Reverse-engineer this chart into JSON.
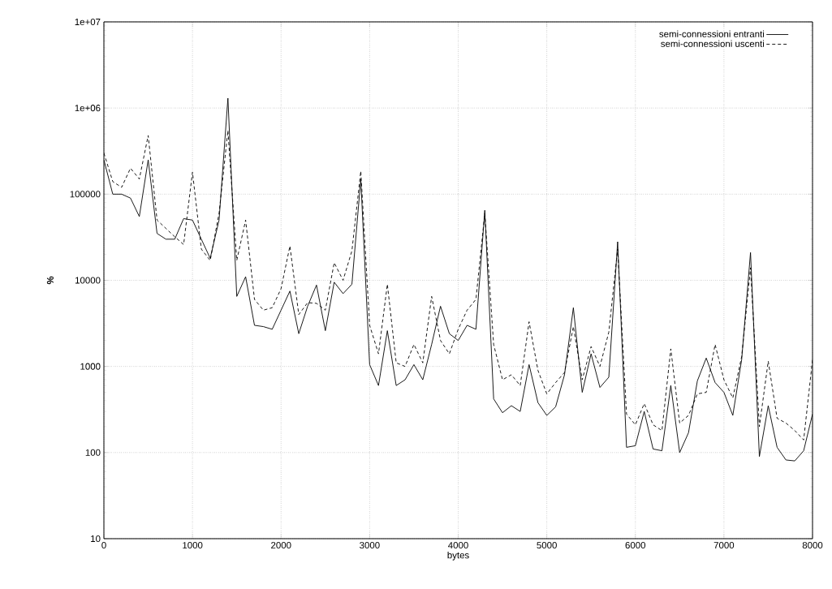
{
  "chart_data": {
    "type": "line",
    "xlabel": "bytes",
    "ylabel": "%",
    "log": "y",
    "grid": true,
    "legend": "top right",
    "xlim": [
      0,
      8000
    ],
    "xticks": [
      0,
      1000,
      2000,
      3000,
      4000,
      5000,
      6000,
      7000,
      8000
    ],
    "ylim": [
      10,
      10000000
    ],
    "yticks": [
      10,
      100,
      1000,
      10000,
      100000,
      {
        "value": 1000000,
        "label": "1e+06"
      },
      {
        "value": 10000000,
        "label": "1e+07"
      }
    ],
    "x": [
      0,
      100,
      200,
      300,
      400,
      500,
      600,
      700,
      800,
      900,
      1000,
      1100,
      1200,
      1300,
      1400,
      1500,
      1600,
      1700,
      1800,
      1900,
      2000,
      2100,
      2200,
      2300,
      2400,
      2500,
      2600,
      2700,
      2800,
      2900,
      3000,
      3100,
      3200,
      3300,
      3400,
      3500,
      3600,
      3700,
      3800,
      3900,
      4000,
      4100,
      4200,
      4300,
      4400,
      4500,
      4600,
      4700,
      4800,
      4900,
      5000,
      5100,
      5200,
      5300,
      5400,
      5500,
      5600,
      5700,
      5800,
      5900,
      6000,
      6100,
      6200,
      6300,
      6400,
      6500,
      6600,
      6700,
      6800,
      6900,
      7000,
      7100,
      7200,
      7300,
      7400,
      7500,
      7600,
      7700,
      7800,
      7900,
      8000
    ],
    "series": [
      {
        "name": "semi-connessioni entranti",
        "color": "#000000",
        "line_style": "solid",
        "values": [
          250000,
          100000,
          100000,
          90000,
          55000,
          250000,
          35000,
          30000,
          30000,
          52000,
          50000,
          30000,
          18000,
          50000,
          1300000,
          6500,
          11000,
          3000,
          2900,
          2700,
          4500,
          7500,
          2400,
          5000,
          8800,
          2600,
          9500,
          7000,
          9000,
          150000,
          1050,
          600,
          2600,
          600,
          700,
          1050,
          700,
          1800,
          5000,
          2400,
          2000,
          3000,
          2700,
          65000,
          420,
          290,
          350,
          300,
          1050,
          380,
          270,
          340,
          800,
          4800,
          500,
          1400,
          570,
          750,
          28000,
          115,
          120,
          300,
          110,
          105,
          600,
          100,
          170,
          680,
          1250,
          650,
          500,
          270,
          1200,
          21000,
          90,
          350,
          115,
          82,
          80,
          105,
          280
        ]
      },
      {
        "name": "semi-connessioni uscenti",
        "color": "#000000",
        "line_style": "dashed",
        "values": [
          300000,
          140000,
          120000,
          200000,
          150000,
          480000,
          50000,
          40000,
          32000,
          26000,
          180000,
          23000,
          17000,
          60000,
          550000,
          17000,
          50000,
          6000,
          4500,
          4800,
          8000,
          25000,
          4000,
          5500,
          5400,
          4500,
          16000,
          10000,
          22000,
          185000,
          3000,
          1400,
          9000,
          1100,
          1000,
          1800,
          1100,
          6500,
          2000,
          1400,
          2700,
          4500,
          6000,
          60000,
          1800,
          700,
          800,
          600,
          3300,
          900,
          480,
          650,
          850,
          2900,
          700,
          1700,
          1000,
          2500,
          23000,
          280,
          210,
          370,
          210,
          180,
          1600,
          220,
          270,
          480,
          500,
          1800,
          700,
          430,
          1300,
          14000,
          200,
          1150,
          250,
          220,
          180,
          140,
          1200
        ]
      }
    ]
  }
}
